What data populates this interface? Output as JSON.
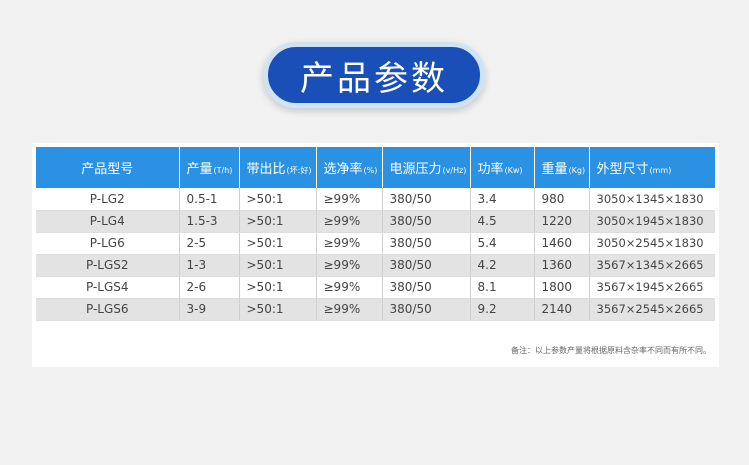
{
  "title": "产品参数",
  "table": {
    "headers": [
      {
        "label": "产品型号",
        "unit": ""
      },
      {
        "label": "产量",
        "unit": "(T/h)"
      },
      {
        "label": "带出比",
        "unit": "(坏:好)"
      },
      {
        "label": "选净率",
        "unit": "(%)"
      },
      {
        "label": "电源压力",
        "unit": "(v/Hz)"
      },
      {
        "label": "功率",
        "unit": "(Kw)"
      },
      {
        "label": "重量",
        "unit": "(Kg)"
      },
      {
        "label": "外型尺寸",
        "unit": "(mm)"
      }
    ],
    "rows": [
      [
        "P-LG2",
        "0.5-1",
        ">50:1",
        "≥99%",
        "380/50",
        "3.4",
        "980",
        "3050×1345×1830"
      ],
      [
        "P-LG4",
        "1.5-3",
        ">50:1",
        "≥99%",
        "380/50",
        "4.5",
        "1220",
        "3050×1945×1830"
      ],
      [
        "P-LG6",
        "2-5",
        ">50:1",
        "≥99%",
        "380/50",
        "5.4",
        "1460",
        "3050×2545×1830"
      ],
      [
        "P-LGS2",
        "1-3",
        ">50:1",
        "≥99%",
        "380/50",
        "4.2",
        "1360",
        "3567×1345×2665"
      ],
      [
        "P-LGS4",
        "2-6",
        ">50:1",
        "≥99%",
        "380/50",
        "8.1",
        "1800",
        "3567×1945×2665"
      ],
      [
        "P-LGS6",
        "3-9",
        ">50:1",
        "≥99%",
        "380/50",
        "9.2",
        "2140",
        "3567×2545×2665"
      ]
    ]
  },
  "note": "备注：以上参数产量将根据原料含杂率不同而有所不同。"
}
